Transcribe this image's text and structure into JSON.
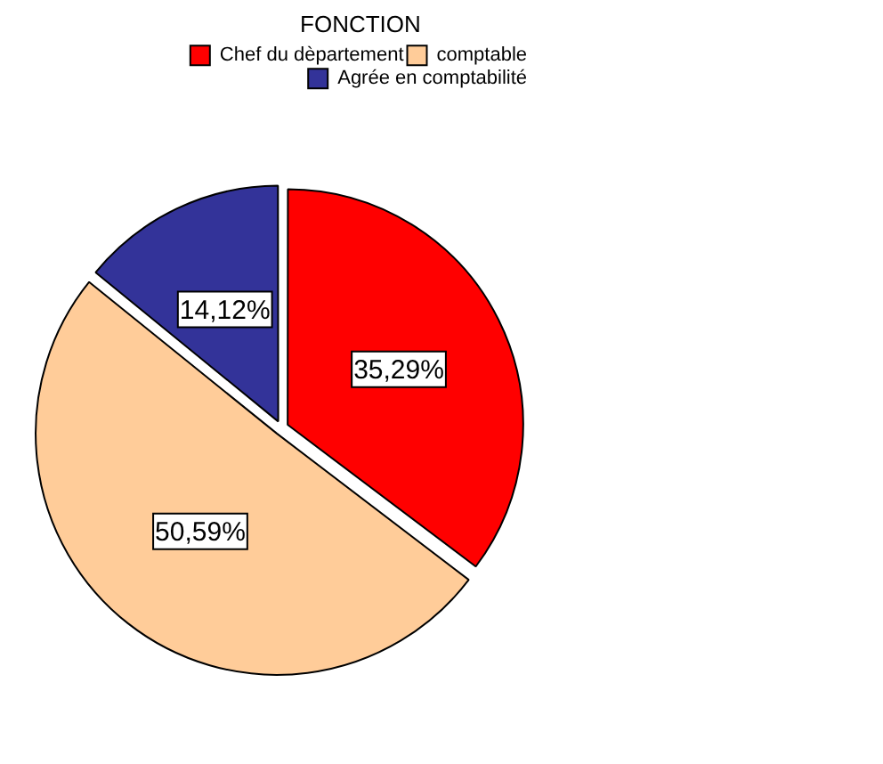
{
  "chart_data": {
    "type": "pie",
    "legend_title": "FONCTION",
    "legend": "top right",
    "value_labels": [
      "35,29%",
      "50,59%",
      "14,12%"
    ],
    "categories": [
      "Chef du dèpartement",
      "comptable",
      "Agrée en comptabilité"
    ],
    "values": [
      35.29,
      50.59,
      14.12
    ],
    "colors": [
      "#ff0000",
      "#ffcc99",
      "#333399"
    ]
  }
}
